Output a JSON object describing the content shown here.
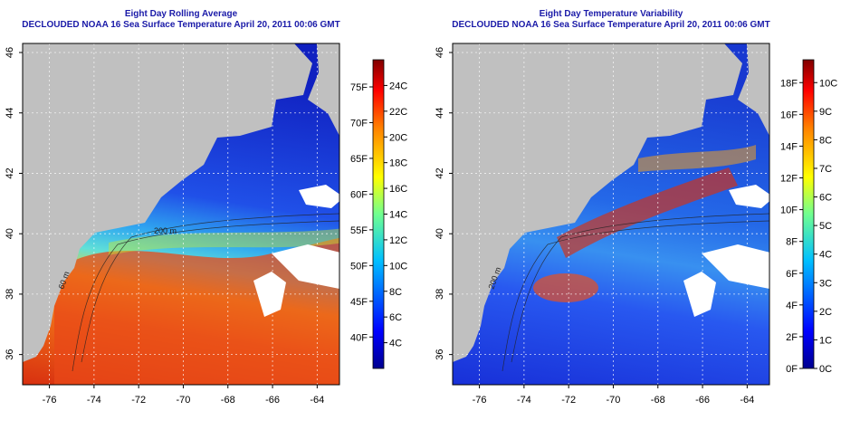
{
  "maps": [
    {
      "title": "Eight Day Rolling Average",
      "subtitle": "DECLOUDED NOAA 16 Sea Surface Temperature April 20, 2011 00:06 GMT",
      "x_ticks": [
        "-76",
        "-74",
        "-72",
        "-70",
        "-68",
        "-66",
        "-64"
      ],
      "y_ticks": [
        "36",
        "38",
        "40",
        "42",
        "44",
        "46"
      ],
      "colorbar": {
        "min": 2,
        "max": 26,
        "ticks_c": [
          4,
          6,
          8,
          10,
          12,
          14,
          16,
          18,
          20,
          22,
          24
        ],
        "labels_c": [
          "4C",
          "6C",
          "8C",
          "10C",
          "12C",
          "14C",
          "16C",
          "18C",
          "20C",
          "22C",
          "24C"
        ],
        "ticks_f": [
          40,
          45,
          50,
          55,
          60,
          65,
          70,
          75
        ],
        "labels_f": [
          "40F",
          "45F",
          "50F",
          "55F",
          "60F",
          "65F",
          "70F",
          "75F"
        ]
      },
      "contour_labels": [
        "60 m",
        "200 m"
      ]
    },
    {
      "title": "Eight Day Temperature Variability",
      "subtitle": "DECLOUDED NOAA 16 Sea Surface Temperature April 20, 2011 00:06 GMT",
      "x_ticks": [
        "-76",
        "-74",
        "-72",
        "-70",
        "-68",
        "-66",
        "-64"
      ],
      "y_ticks": [
        "36",
        "38",
        "40",
        "42",
        "44",
        "46"
      ],
      "colorbar": {
        "min": 0,
        "max": 10.8,
        "ticks_c": [
          0,
          1,
          2,
          3,
          4,
          5,
          6,
          7,
          8,
          9,
          10
        ],
        "labels_c": [
          "0C",
          "1C",
          "2C",
          "3C",
          "4C",
          "5C",
          "6C",
          "7C",
          "8C",
          "9C",
          "10C"
        ],
        "ticks_f": [
          0,
          2,
          4,
          6,
          8,
          10,
          12,
          14,
          16,
          18
        ],
        "labels_f": [
          "0F",
          "2F",
          "4F",
          "6F",
          "8F",
          "10F",
          "12F",
          "14F",
          "16F",
          "18F"
        ]
      },
      "contour_labels": [
        "200 m"
      ]
    }
  ],
  "colors": {
    "land": "#c0c0c0",
    "cloud": "#ffffff",
    "title": "#1a1aa8",
    "frame": "#000000",
    "grid": "#ffffff"
  }
}
